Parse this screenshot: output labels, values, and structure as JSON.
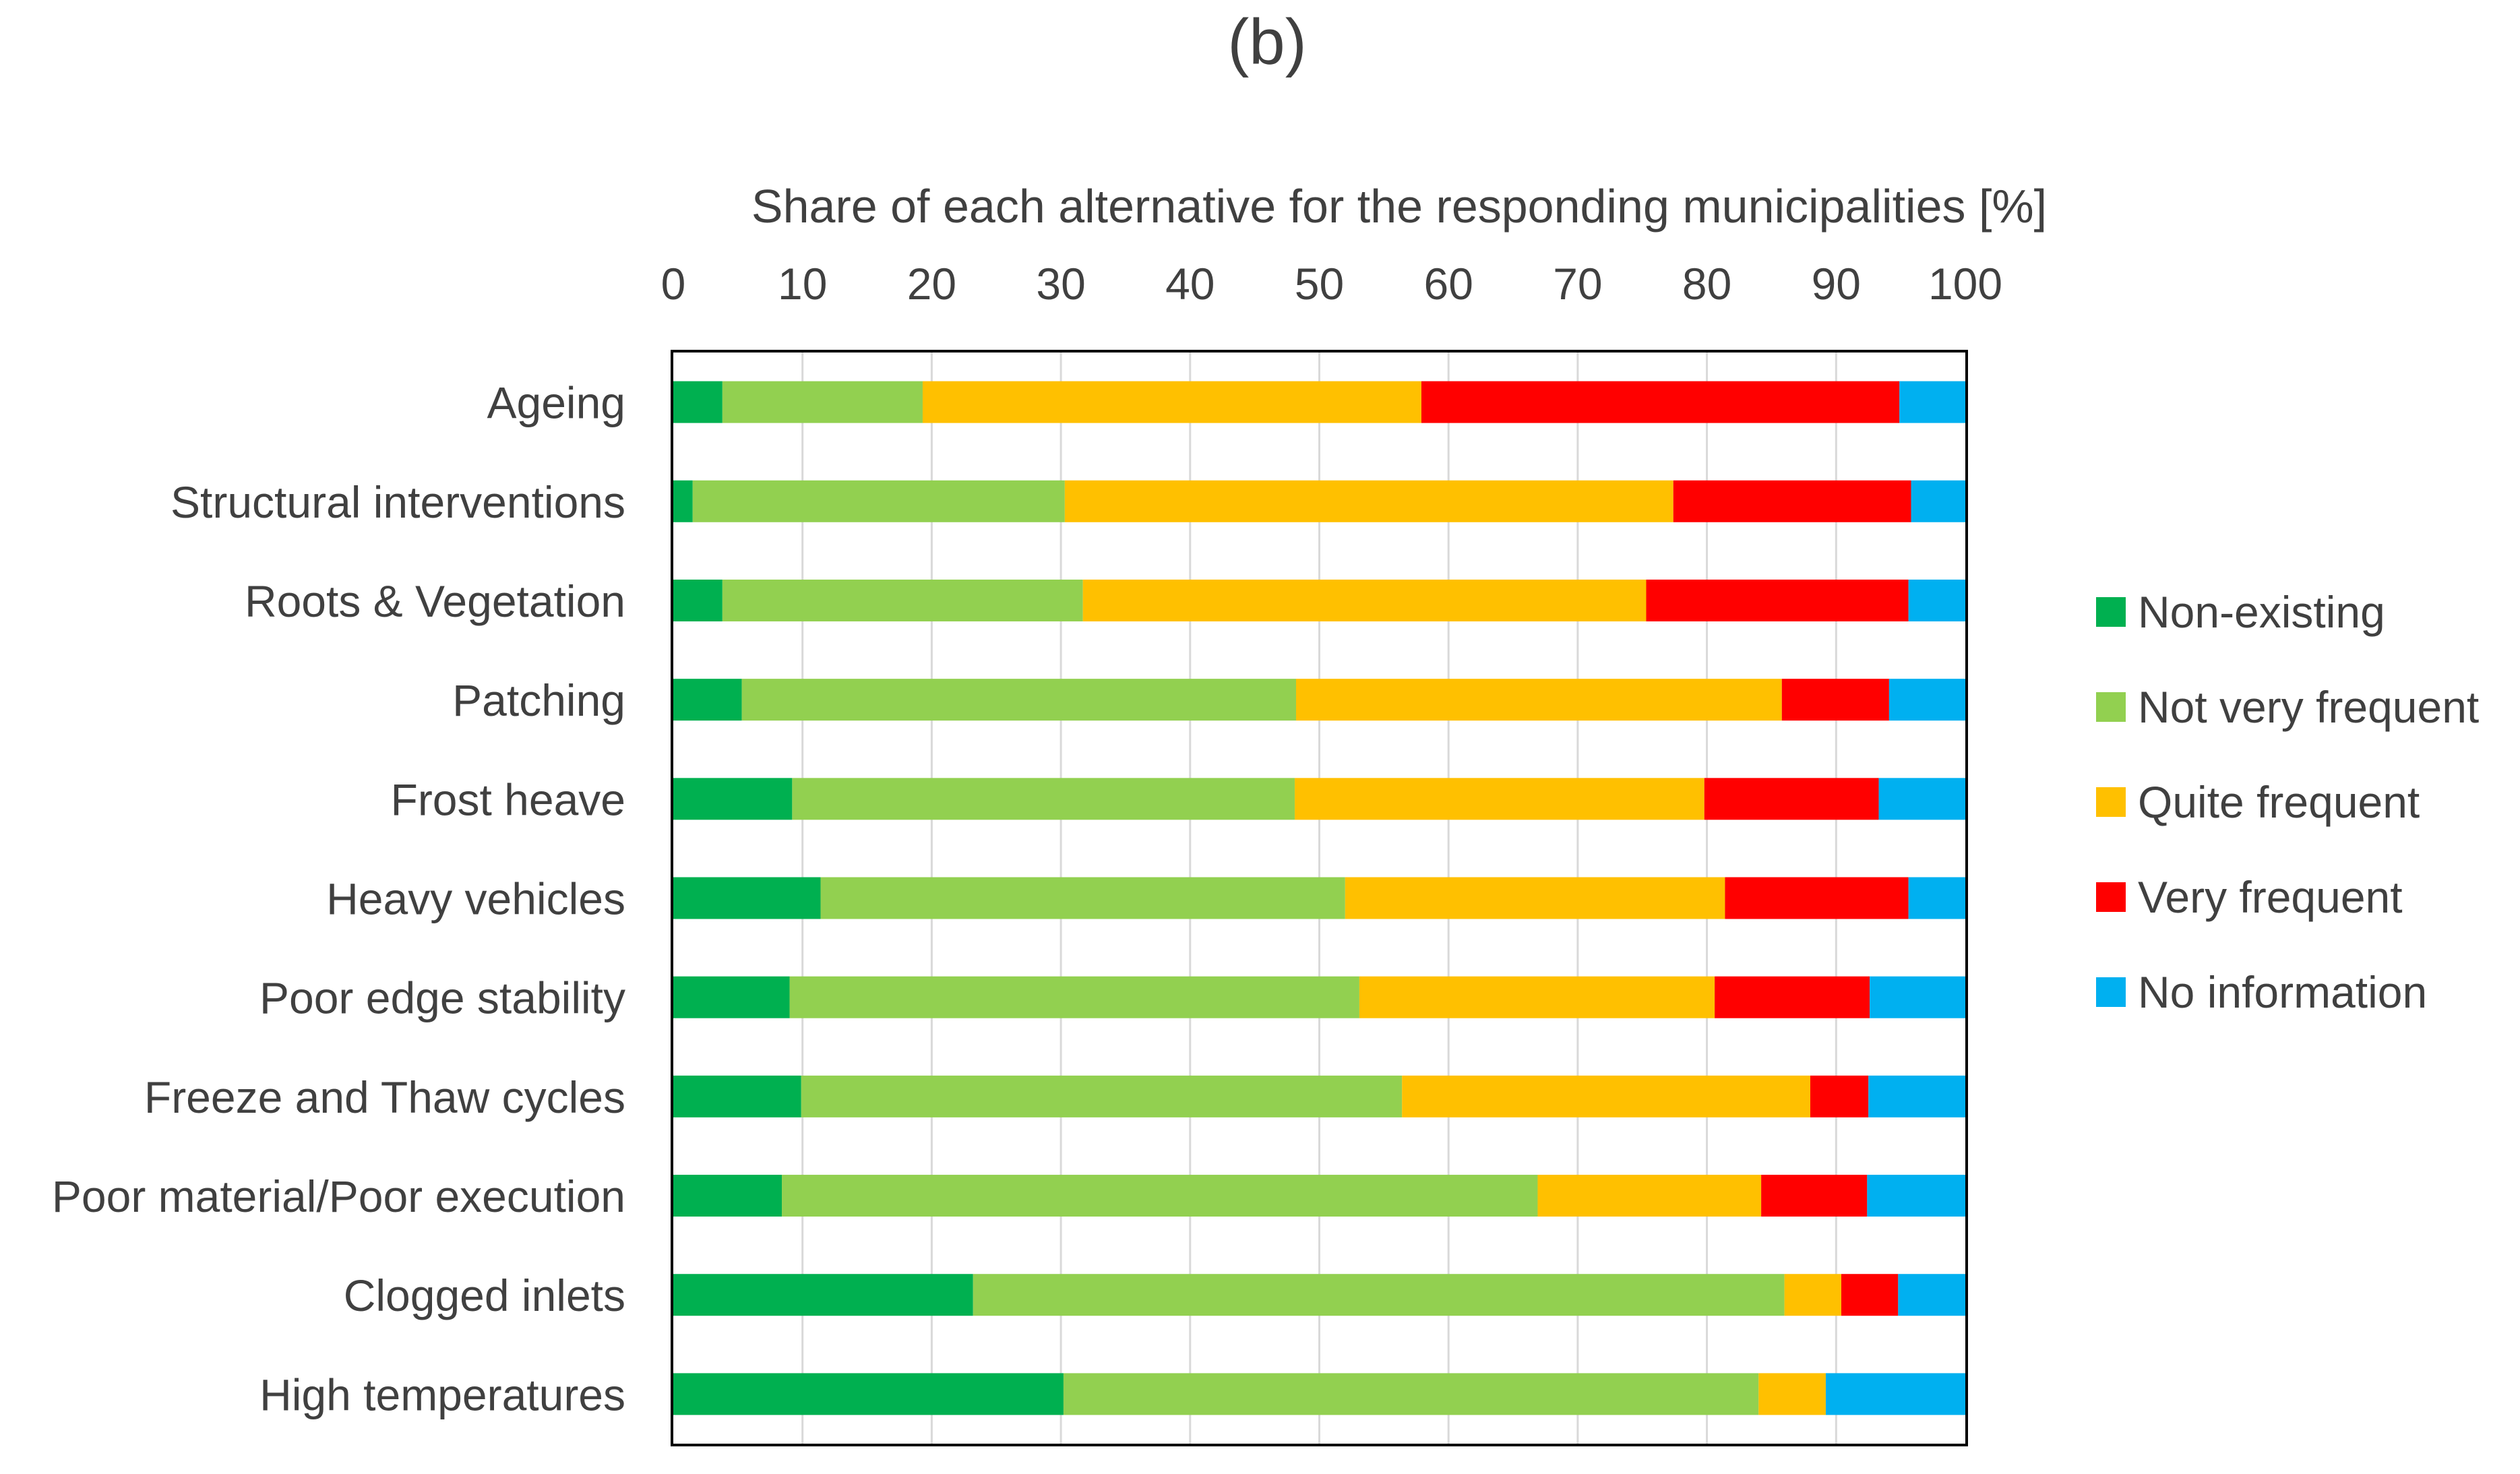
{
  "chart_data": {
    "type": "bar",
    "orientation": "horizontal",
    "stacked": true,
    "panel_label": "(b)",
    "title": "Share of each alternative for the responding municipalities [%]",
    "xlabel": "Share of each alternative for the responding municipalities [%]",
    "ylabel": "",
    "xlim": [
      0,
      100
    ],
    "xticks": [
      "0",
      "10",
      "20",
      "30",
      "40",
      "50",
      "60",
      "70",
      "80",
      "90",
      "100"
    ],
    "grid": true,
    "legend_position": "right",
    "categories": [
      "Ageing",
      "Structural interventions",
      "Roots & Vegetation",
      "Patching",
      "Frost heave",
      "Heavy vehicles",
      "Poor edge stability",
      "Freeze and Thaw cycles",
      "Poor material/Poor execution",
      "Clogged inlets",
      "High temperatures"
    ],
    "series": [
      {
        "name": "Non-existing",
        "color": "#00b050",
        "values": [
          3.8,
          1.5,
          3.8,
          5.3,
          9.2,
          11.4,
          9.0,
          9.9,
          8.4,
          23.2,
          30.2
        ]
      },
      {
        "name": "Not very frequent",
        "color": "#92d050",
        "values": [
          15.5,
          28.8,
          27.9,
          42.9,
          38.9,
          40.6,
          44.1,
          46.5,
          58.5,
          62.8,
          53.8
        ]
      },
      {
        "name": "Quite frequent",
        "color": "#ffc000",
        "values": [
          38.6,
          47.1,
          43.6,
          37.6,
          31.7,
          29.4,
          27.5,
          31.6,
          17.3,
          4.4,
          5.2
        ]
      },
      {
        "name": "Very frequent",
        "color": "#ff0000",
        "values": [
          37.0,
          18.4,
          20.3,
          8.3,
          13.5,
          14.2,
          12.0,
          4.5,
          8.2,
          4.4,
          0.0
        ]
      },
      {
        "name": "No information",
        "color": "#00b0f0",
        "values": [
          5.1,
          4.2,
          4.4,
          5.9,
          6.7,
          4.4,
          7.4,
          7.5,
          7.6,
          5.2,
          10.8
        ]
      }
    ]
  }
}
